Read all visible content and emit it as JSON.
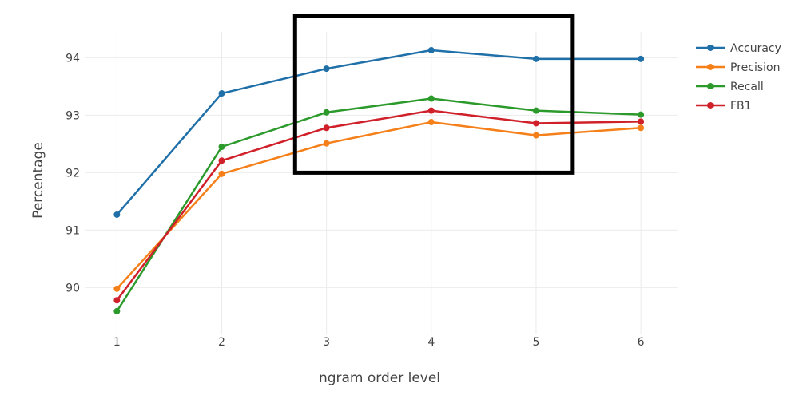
{
  "chart_data": {
    "type": "line",
    "title": "",
    "xlabel": "ngram order level",
    "ylabel": "Percentage",
    "x": [
      1,
      2,
      3,
      4,
      5,
      6
    ],
    "xticks": [
      "1",
      "2",
      "3",
      "4",
      "5",
      "6"
    ],
    "yticks": [
      "90",
      "91",
      "92",
      "93",
      "94"
    ],
    "xlim": [
      0.7,
      6.35
    ],
    "ylim": [
      89.2,
      94.45
    ],
    "grid": true,
    "legend_position": "top-right",
    "series": [
      {
        "name": "Accuracy",
        "color": "#1f6fa8",
        "values": [
          91.27,
          93.38,
          93.81,
          94.13,
          93.98,
          93.98
        ]
      },
      {
        "name": "Precision",
        "color": "#f5801a",
        "values": [
          89.98,
          91.98,
          92.51,
          92.88,
          92.65,
          92.78
        ]
      },
      {
        "name": "Recall",
        "color": "#2b9a2b",
        "values": [
          89.59,
          92.45,
          93.05,
          93.29,
          93.08,
          93.01
        ]
      },
      {
        "name": "FB1",
        "color": "#d0202a",
        "values": [
          89.78,
          92.21,
          92.78,
          93.08,
          92.86,
          92.89
        ]
      }
    ],
    "highlight_box": {
      "x_range": [
        2.7,
        5.35
      ],
      "y_range": [
        92.0,
        94.73
      ],
      "color": "#000000"
    }
  }
}
